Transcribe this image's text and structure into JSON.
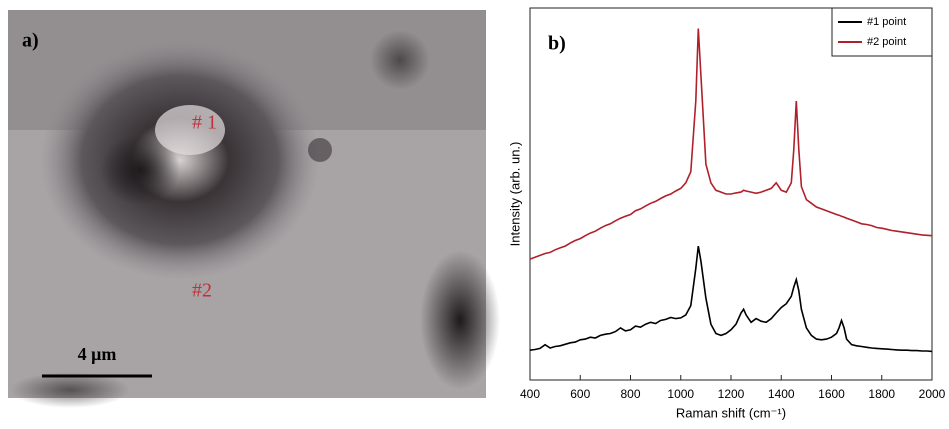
{
  "panel_a": {
    "label": "a)",
    "markers": [
      "# 1",
      "#2"
    ],
    "scale_bar": "4 μm"
  },
  "chart_data": {
    "type": "line",
    "panel_label": "b)",
    "x_label": "Raman shift (cm⁻¹)",
    "y_label": "Intensity (arb. un.)",
    "xlim": [
      400,
      2000
    ],
    "xticks": [
      400,
      600,
      800,
      1000,
      1200,
      1400,
      1600,
      1800,
      2000
    ],
    "ylim": [
      0,
      100
    ],
    "legend": "upper right",
    "x": [
      400,
      420,
      440,
      460,
      480,
      500,
      520,
      540,
      560,
      580,
      600,
      620,
      640,
      660,
      680,
      700,
      720,
      740,
      760,
      780,
      800,
      820,
      840,
      860,
      880,
      900,
      920,
      940,
      960,
      980,
      1000,
      1020,
      1040,
      1060,
      1070,
      1080,
      1100,
      1120,
      1140,
      1160,
      1180,
      1200,
      1220,
      1240,
      1250,
      1260,
      1280,
      1300,
      1320,
      1340,
      1360,
      1380,
      1400,
      1420,
      1440,
      1450,
      1460,
      1470,
      1480,
      1500,
      1520,
      1540,
      1560,
      1580,
      1600,
      1620,
      1630,
      1640,
      1650,
      1660,
      1680,
      1700,
      1720,
      1740,
      1760,
      1780,
      1800,
      1820,
      1840,
      1860,
      1880,
      1900,
      1920,
      1940,
      1960,
      1980,
      2000
    ],
    "series": [
      {
        "name": "#1 point",
        "color": "#000000",
        "values": [
          8,
          8.2,
          8.5,
          9.5,
          8.6,
          9,
          9.2,
          9.6,
          10,
          10.2,
          10.8,
          11,
          11.5,
          11.3,
          12,
          12.3,
          12.5,
          13,
          14,
          13.2,
          13.5,
          14.5,
          14.2,
          15,
          15.5,
          15.2,
          16,
          16.3,
          16.8,
          16.5,
          16.7,
          17.5,
          20,
          30,
          36,
          32,
          22,
          15,
          12.5,
          12,
          12.5,
          13.5,
          15,
          18,
          19,
          17.5,
          15.5,
          16.5,
          15.8,
          15.5,
          16.5,
          18,
          19.5,
          20.5,
          22.5,
          25,
          27,
          24,
          19,
          14,
          12,
          11,
          10.8,
          11,
          11.5,
          12.5,
          14,
          16,
          14,
          11,
          9.5,
          9.2,
          9,
          8.8,
          8.6,
          8.5,
          8.4,
          8.3,
          8.2,
          8.1,
          8,
          8,
          7.9,
          7.9,
          7.8,
          7.8,
          7.7
        ]
      },
      {
        "name": "#2 point",
        "color": "#b0202a",
        "values": [
          32.5,
          33,
          33.5,
          34,
          34.3,
          35,
          35.5,
          36,
          36.8,
          37.5,
          38,
          38.8,
          39.5,
          40,
          40.8,
          41.5,
          42,
          42.8,
          43.5,
          44,
          44.5,
          45.5,
          46,
          46.8,
          47.5,
          48,
          48.8,
          49.5,
          50,
          50.8,
          51.5,
          53,
          56,
          75,
          94.5,
          82,
          58,
          53,
          51,
          50.5,
          50,
          50,
          50.3,
          50.5,
          51,
          50.8,
          50.5,
          50.2,
          50.5,
          51,
          51.5,
          53,
          51,
          50.5,
          53,
          62,
          75,
          62,
          52,
          48.5,
          47.5,
          46.5,
          46,
          45.5,
          45,
          44.5,
          44.3,
          44,
          43.8,
          43.5,
          43,
          42.5,
          42,
          41.8,
          41.5,
          41,
          40.8,
          40.5,
          40.2,
          40,
          39.8,
          39.6,
          39.4,
          39.2,
          39,
          38.9,
          38.8
        ]
      }
    ]
  }
}
